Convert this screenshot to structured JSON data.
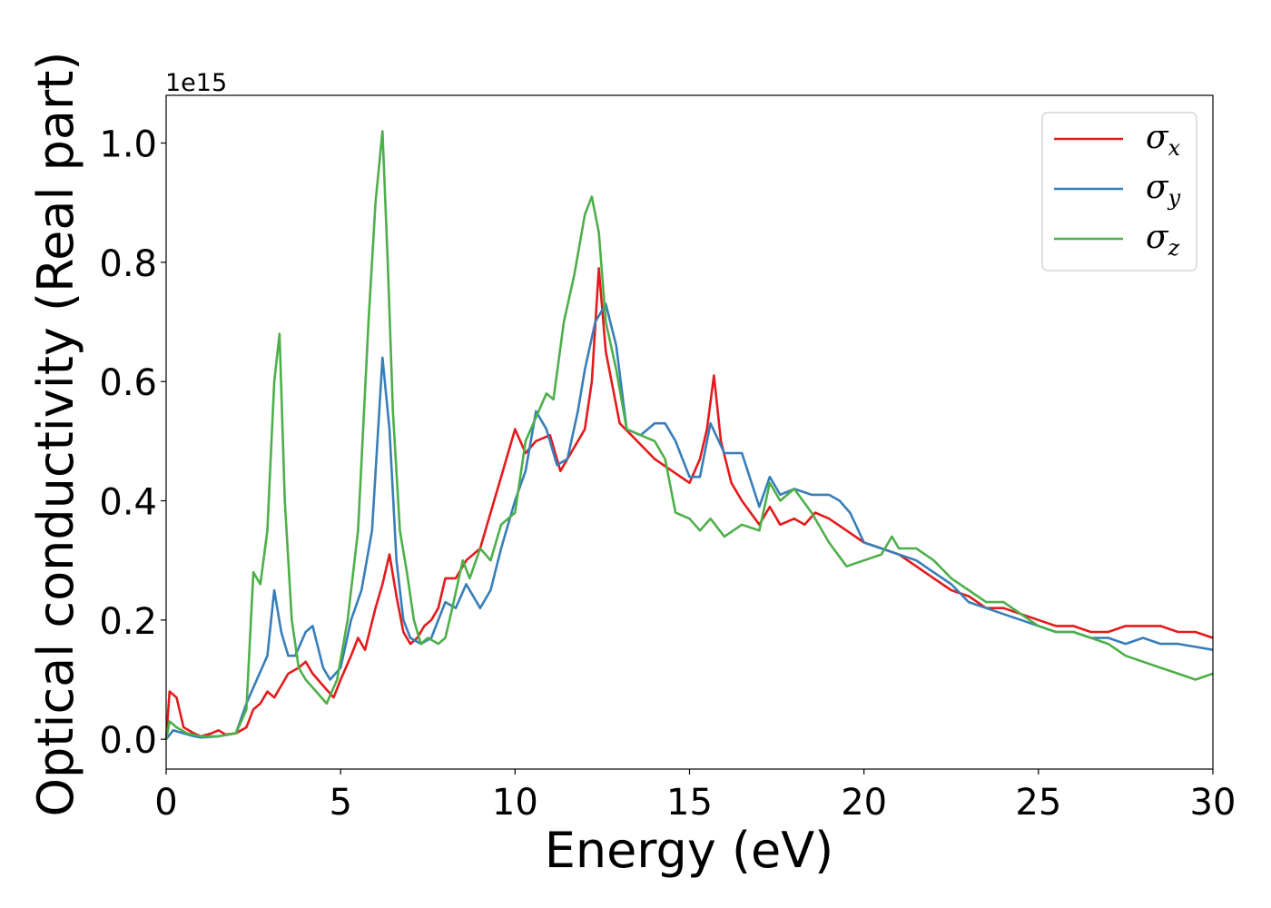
{
  "chart_data": {
    "type": "line",
    "xlabel": "Energy (eV)",
    "ylabel": "Optical conductivity (Real part)",
    "y_offset_text": "1e15",
    "xlim": [
      0,
      30
    ],
    "ylim": [
      -0.05,
      1.08
    ],
    "x_ticks": [
      0,
      5,
      10,
      15,
      20,
      25,
      30
    ],
    "x_tick_labels": [
      "0",
      "5",
      "10",
      "15",
      "20",
      "25",
      "30"
    ],
    "y_ticks": [
      0.0,
      0.2,
      0.4,
      0.6,
      0.8,
      1.0
    ],
    "y_tick_labels": [
      "0.0",
      "0.2",
      "0.4",
      "0.6",
      "0.8",
      "1.0"
    ],
    "grid": false,
    "legend_position": "top-right",
    "series": [
      {
        "name": "σx",
        "legend_base": "σ",
        "legend_sub": "x",
        "color": "#e41a1c",
        "x": [
          0,
          0.1,
          0.3,
          0.5,
          0.8,
          1.0,
          1.3,
          1.5,
          1.7,
          2.0,
          2.3,
          2.5,
          2.7,
          2.9,
          3.1,
          3.3,
          3.5,
          3.8,
          4.0,
          4.2,
          4.5,
          4.8,
          5.0,
          5.3,
          5.5,
          5.7,
          6.0,
          6.2,
          6.4,
          6.6,
          6.8,
          7.0,
          7.2,
          7.4,
          7.6,
          7.8,
          8.0,
          8.3,
          8.6,
          9.0,
          9.3,
          9.6,
          10.0,
          10.3,
          10.6,
          11.0,
          11.3,
          11.6,
          12.0,
          12.2,
          12.4,
          12.6,
          13.0,
          13.5,
          14.0,
          14.5,
          15.0,
          15.3,
          15.5,
          15.7,
          15.9,
          16.2,
          16.5,
          17.0,
          17.3,
          17.6,
          18.0,
          18.3,
          18.6,
          19.0,
          19.5,
          20.0,
          20.5,
          21.0,
          21.5,
          22.0,
          22.5,
          23.0,
          23.5,
          24.0,
          24.5,
          25.0,
          25.5,
          26.0,
          26.5,
          27.0,
          27.5,
          28.0,
          28.5,
          29.0,
          29.5,
          30.0
        ],
        "y": [
          0.0,
          0.08,
          0.07,
          0.02,
          0.01,
          0.005,
          0.01,
          0.015,
          0.008,
          0.01,
          0.02,
          0.05,
          0.06,
          0.08,
          0.07,
          0.09,
          0.11,
          0.12,
          0.13,
          0.11,
          0.09,
          0.07,
          0.1,
          0.14,
          0.17,
          0.15,
          0.22,
          0.26,
          0.31,
          0.24,
          0.18,
          0.16,
          0.17,
          0.19,
          0.2,
          0.22,
          0.27,
          0.27,
          0.3,
          0.32,
          0.38,
          0.44,
          0.52,
          0.48,
          0.5,
          0.51,
          0.45,
          0.48,
          0.52,
          0.6,
          0.79,
          0.65,
          0.53,
          0.5,
          0.47,
          0.45,
          0.43,
          0.47,
          0.52,
          0.61,
          0.5,
          0.43,
          0.4,
          0.36,
          0.39,
          0.36,
          0.37,
          0.36,
          0.38,
          0.37,
          0.35,
          0.33,
          0.32,
          0.31,
          0.29,
          0.27,
          0.25,
          0.24,
          0.22,
          0.22,
          0.21,
          0.2,
          0.19,
          0.19,
          0.18,
          0.18,
          0.19,
          0.19,
          0.19,
          0.18,
          0.18,
          0.17
        ]
      },
      {
        "name": "σy",
        "legend_base": "σ",
        "legend_sub": "y",
        "color": "#377eb8",
        "x": [
          0,
          0.2,
          0.5,
          0.8,
          1.0,
          1.5,
          2.0,
          2.3,
          2.6,
          2.9,
          3.1,
          3.3,
          3.5,
          3.7,
          4.0,
          4.2,
          4.5,
          4.7,
          5.0,
          5.3,
          5.6,
          5.9,
          6.2,
          6.4,
          6.6,
          6.8,
          7.0,
          7.3,
          7.6,
          8.0,
          8.3,
          8.6,
          9.0,
          9.3,
          9.6,
          10.0,
          10.3,
          10.6,
          10.9,
          11.2,
          11.5,
          11.8,
          12.0,
          12.3,
          12.6,
          12.9,
          13.2,
          13.6,
          14.0,
          14.3,
          14.6,
          15.0,
          15.3,
          15.6,
          16.0,
          16.5,
          17.0,
          17.3,
          17.6,
          18.0,
          18.5,
          19.0,
          19.3,
          19.6,
          20.0,
          20.5,
          21.0,
          21.5,
          22.0,
          22.5,
          23.0,
          23.5,
          24.0,
          24.5,
          25.0,
          25.5,
          26.0,
          26.5,
          27.0,
          27.5,
          28.0,
          28.5,
          29.0,
          29.5,
          30.0
        ],
        "y": [
          0.0,
          0.015,
          0.01,
          0.005,
          0.003,
          0.005,
          0.01,
          0.06,
          0.1,
          0.14,
          0.25,
          0.18,
          0.14,
          0.14,
          0.18,
          0.19,
          0.12,
          0.1,
          0.12,
          0.2,
          0.25,
          0.35,
          0.64,
          0.52,
          0.3,
          0.2,
          0.17,
          0.16,
          0.17,
          0.23,
          0.22,
          0.26,
          0.22,
          0.25,
          0.32,
          0.4,
          0.45,
          0.55,
          0.52,
          0.46,
          0.47,
          0.55,
          0.62,
          0.7,
          0.73,
          0.66,
          0.52,
          0.51,
          0.53,
          0.53,
          0.5,
          0.44,
          0.44,
          0.53,
          0.48,
          0.48,
          0.39,
          0.44,
          0.41,
          0.42,
          0.41,
          0.41,
          0.4,
          0.38,
          0.33,
          0.32,
          0.31,
          0.3,
          0.28,
          0.26,
          0.23,
          0.22,
          0.21,
          0.2,
          0.19,
          0.18,
          0.18,
          0.17,
          0.17,
          0.16,
          0.17,
          0.16,
          0.16,
          0.155,
          0.15
        ]
      },
      {
        "name": "σz",
        "legend_base": "σ",
        "legend_sub": "z",
        "color": "#4daf4a",
        "x": [
          0,
          0.1,
          0.3,
          0.6,
          1.0,
          1.5,
          2.0,
          2.3,
          2.5,
          2.7,
          2.9,
          3.1,
          3.25,
          3.4,
          3.6,
          3.8,
          4.0,
          4.3,
          4.6,
          4.9,
          5.2,
          5.5,
          5.8,
          6.0,
          6.2,
          6.35,
          6.5,
          6.7,
          6.9,
          7.1,
          7.3,
          7.5,
          7.8,
          8.0,
          8.2,
          8.5,
          8.7,
          9.0,
          9.3,
          9.6,
          10.0,
          10.3,
          10.6,
          10.9,
          11.1,
          11.4,
          11.7,
          12.0,
          12.2,
          12.4,
          12.6,
          12.9,
          13.2,
          13.6,
          14.0,
          14.3,
          14.6,
          15.0,
          15.3,
          15.6,
          16.0,
          16.5,
          17.0,
          17.3,
          17.6,
          18.0,
          18.5,
          19.0,
          19.5,
          20.0,
          20.5,
          20.8,
          21.0,
          21.5,
          22.0,
          22.5,
          23.0,
          23.5,
          24.0,
          24.5,
          25.0,
          25.5,
          26.0,
          26.5,
          27.0,
          27.5,
          28.0,
          28.5,
          29.0,
          29.5,
          30.0
        ],
        "y": [
          0.0,
          0.03,
          0.02,
          0.01,
          0.005,
          0.005,
          0.01,
          0.05,
          0.28,
          0.26,
          0.35,
          0.6,
          0.68,
          0.4,
          0.2,
          0.12,
          0.1,
          0.08,
          0.06,
          0.1,
          0.2,
          0.35,
          0.7,
          0.9,
          1.02,
          0.8,
          0.55,
          0.35,
          0.28,
          0.2,
          0.16,
          0.17,
          0.16,
          0.17,
          0.22,
          0.3,
          0.27,
          0.32,
          0.3,
          0.36,
          0.38,
          0.5,
          0.54,
          0.58,
          0.57,
          0.7,
          0.78,
          0.88,
          0.91,
          0.85,
          0.7,
          0.62,
          0.52,
          0.51,
          0.5,
          0.47,
          0.38,
          0.37,
          0.35,
          0.37,
          0.34,
          0.36,
          0.35,
          0.43,
          0.4,
          0.42,
          0.38,
          0.33,
          0.29,
          0.3,
          0.31,
          0.34,
          0.32,
          0.32,
          0.3,
          0.27,
          0.25,
          0.23,
          0.23,
          0.21,
          0.19,
          0.18,
          0.18,
          0.17,
          0.16,
          0.14,
          0.13,
          0.12,
          0.11,
          0.1,
          0.11
        ]
      }
    ]
  }
}
